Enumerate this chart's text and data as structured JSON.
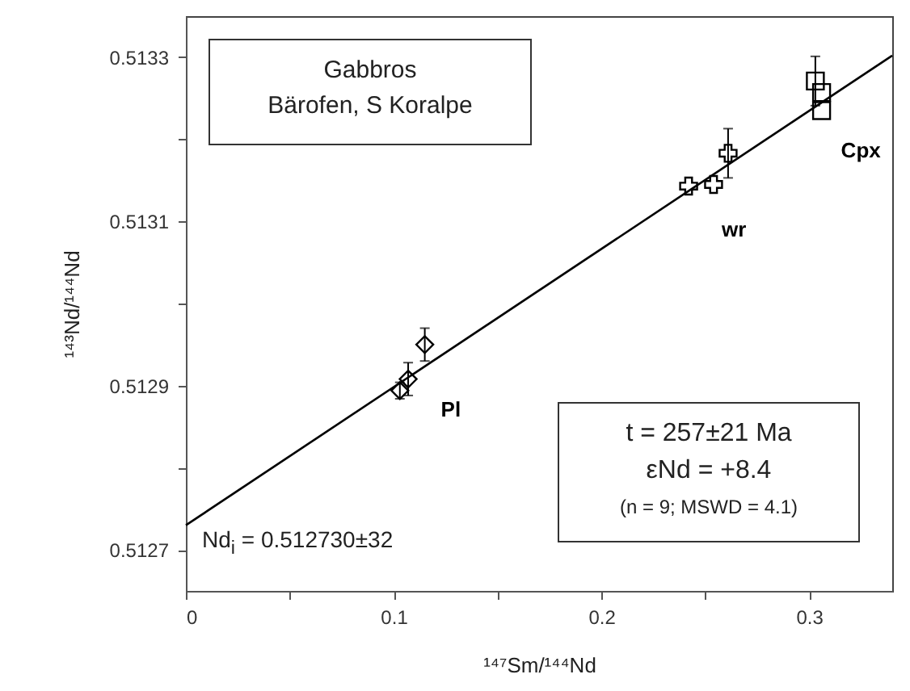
{
  "chart_data": {
    "type": "scatter",
    "xlabel": "¹⁴⁷Sm/¹⁴⁴Nd",
    "ylabel": "¹⁴³Nd/¹⁴⁴Nd",
    "xlim": [
      0,
      0.34
    ],
    "ylim": [
      0.51265,
      0.51335
    ],
    "xticks": [
      0,
      {
        "value": 0.05,
        "label": null
      },
      0.1,
      {
        "value": 0.15,
        "label": null
      },
      0.2,
      {
        "value": 0.25,
        "label": null
      },
      0.3
    ],
    "yticks": [
      0.5127,
      {
        "value": 0.5128,
        "label": null
      },
      0.5129,
      {
        "value": 0.513,
        "label": null
      },
      0.5131,
      {
        "value": 0.5132,
        "label": null
      },
      0.5133
    ],
    "grid": false,
    "annotations": [
      "Gabbros",
      "Bärofen, S Koralpe",
      "Nd$_{i}$ = 0.512730±32",
      "t = 257±21 Ma",
      "εNd = +8.4",
      "(n = 9; MSWD = 4.1)"
    ],
    "series": [
      {
        "name": "Pl",
        "color": "#000000",
        "marker": "diamond",
        "x": [
          0.103,
          0.107,
          0.115
        ],
        "values": [
          0.512894,
          0.512908,
          0.51295
        ],
        "errors": [
          1e-05,
          2e-05,
          2e-05
        ]
      },
      {
        "name": "wr",
        "color": "#000000",
        "marker": "cross",
        "x": [
          0.242,
          0.254,
          0.261
        ],
        "values": [
          0.513143,
          0.513145,
          0.513183
        ],
        "errors": [
          null,
          null,
          3e-05
        ]
      },
      {
        "name": "Cpx",
        "color": "#000000",
        "marker": "square",
        "x": [
          0.303,
          0.306,
          0.306
        ],
        "values": [
          0.513271,
          0.513257,
          0.513235
        ],
        "errors": [
          3e-05,
          null,
          null
        ]
      },
      {
        "type": "line",
        "color": "#000000",
        "x": [
          0,
          0.34
        ],
        "values": [
          0.51273,
          0.513302
        ]
      }
    ]
  }
}
